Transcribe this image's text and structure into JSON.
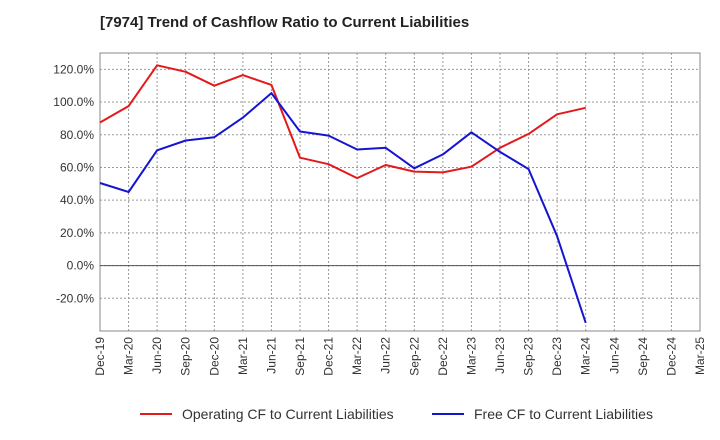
{
  "chart_data": {
    "type": "line",
    "title": "[7974]  Trend of Cashflow Ratio to Current Liabilities",
    "xlabel": "",
    "ylabel": "",
    "ylim": [
      -40,
      130
    ],
    "y_ticks": [
      120,
      100,
      80,
      60,
      40,
      20,
      0,
      -20
    ],
    "y_tick_labels": [
      "120.0%",
      "100.0%",
      "80.0%",
      "60.0%",
      "40.0%",
      "20.0%",
      "0.0%",
      "-20.0%"
    ],
    "categories": [
      "Dec-19",
      "Mar-20",
      "Jun-20",
      "Sep-20",
      "Dec-20",
      "Mar-21",
      "Jun-21",
      "Sep-21",
      "Dec-21",
      "Mar-22",
      "Jun-22",
      "Sep-22",
      "Dec-22",
      "Mar-23",
      "Jun-23",
      "Sep-23",
      "Dec-23",
      "Mar-24",
      "Jun-24",
      "Sep-24",
      "Dec-24",
      "Mar-25"
    ],
    "grid": true,
    "legend_position": "bottom",
    "series": [
      {
        "name": "Operating CF to Current Liabilities",
        "color": "#e31a1c",
        "values": [
          87.5,
          97.5,
          122.5,
          118.5,
          110,
          116.5,
          110.5,
          66,
          62,
          53.5,
          61.5,
          57.5,
          57,
          60.5,
          72,
          80.5,
          92.5,
          96.5,
          null,
          null,
          null,
          null
        ]
      },
      {
        "name": "Free CF to Current Liabilities",
        "color": "#1515d1",
        "values": [
          50.5,
          45,
          70.5,
          76.5,
          78.5,
          90.5,
          105.5,
          82,
          79.5,
          71,
          72,
          59.5,
          68,
          81.5,
          69.5,
          59,
          18,
          -35,
          null,
          null,
          null,
          null
        ]
      }
    ]
  }
}
